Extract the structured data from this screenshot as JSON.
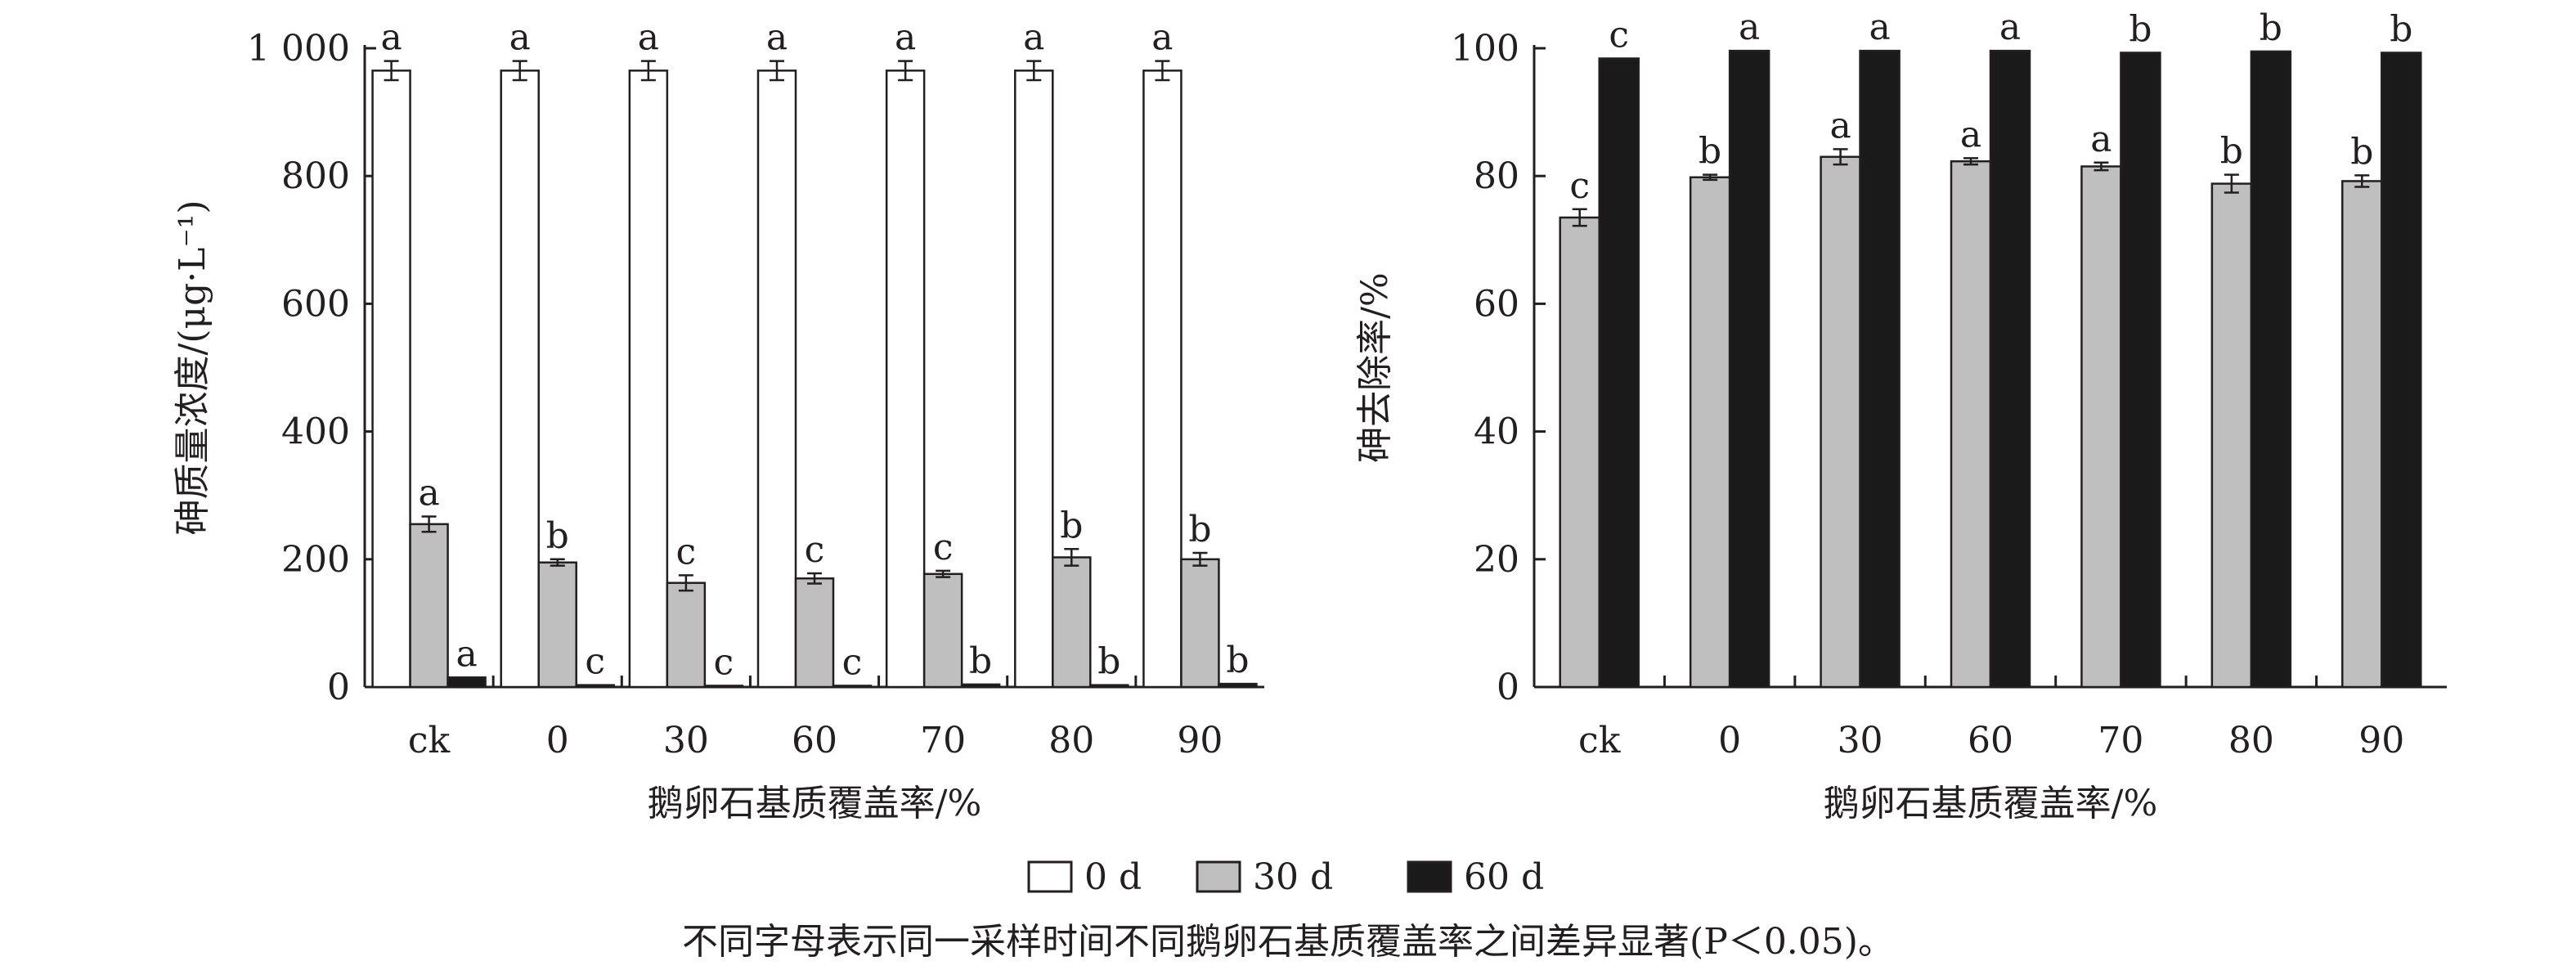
{
  "chart_data": [
    {
      "type": "bar",
      "categories": [
        "ck",
        "0",
        "30",
        "60",
        "70",
        "80",
        "90"
      ],
      "xlabel": "鹅卵石基质覆盖率/%",
      "ylabel": "砷质量浓度/(μg·L⁻¹)",
      "ylim": [
        0,
        1000
      ],
      "yticks": [
        "0",
        "200",
        "400",
        "600",
        "800",
        "1 000"
      ],
      "ytick_values": [
        0,
        200,
        400,
        600,
        800,
        1000
      ],
      "series": [
        {
          "name": "0 d",
          "color": "#ffffff",
          "values": [
            965,
            965,
            965,
            965,
            965,
            965,
            965
          ],
          "errors": [
            15,
            15,
            15,
            15,
            15,
            15,
            15
          ],
          "labels": [
            "a",
            "a",
            "a",
            "a",
            "a",
            "a",
            "a"
          ]
        },
        {
          "name": "30 d",
          "color": "#bfbfbf",
          "values": [
            255,
            195,
            163,
            170,
            177,
            203,
            200
          ],
          "errors": [
            12,
            5,
            12,
            8,
            5,
            13,
            10
          ],
          "labels": [
            "a",
            "b",
            "c",
            "c",
            "c",
            "b",
            "b"
          ]
        },
        {
          "name": "60 d",
          "color": "#1a1a1a",
          "values": [
            15,
            3,
            2,
            2,
            4,
            3,
            5
          ],
          "errors": [
            0,
            0,
            0,
            0,
            0,
            0,
            0
          ],
          "labels": [
            "a",
            "c",
            "c",
            "c",
            "b",
            "b",
            "b"
          ]
        }
      ]
    },
    {
      "type": "bar",
      "categories": [
        "ck",
        "0",
        "30",
        "60",
        "70",
        "80",
        "90"
      ],
      "xlabel": "鹅卵石基质覆盖率/%",
      "ylabel": "砷去除率/%",
      "ylim": [
        0,
        100
      ],
      "yticks": [
        "0",
        "20",
        "40",
        "60",
        "80",
        "100"
      ],
      "ytick_values": [
        0,
        20,
        40,
        60,
        80,
        100
      ],
      "series": [
        {
          "name": "30 d",
          "color": "#bfbfbf",
          "values": [
            73.5,
            79.8,
            83.0,
            82.3,
            81.5,
            78.8,
            79.2
          ],
          "errors": [
            1.3,
            0.4,
            1.2,
            0.5,
            0.6,
            1.4,
            0.9
          ],
          "labels": [
            "c",
            "b",
            "a",
            "a",
            "a",
            "b",
            "b"
          ]
        },
        {
          "name": "60 d",
          "color": "#1a1a1a",
          "values": [
            98.4,
            99.6,
            99.6,
            99.6,
            99.3,
            99.5,
            99.3
          ],
          "errors": [
            0,
            0,
            0,
            0,
            0,
            0,
            0
          ],
          "labels": [
            "c",
            "a",
            "a",
            "a",
            "b",
            "b",
            "b"
          ]
        }
      ]
    }
  ],
  "legend": [
    {
      "label": "0 d",
      "color": "#ffffff"
    },
    {
      "label": "30 d",
      "color": "#bfbfbf"
    },
    {
      "label": "60 d",
      "color": "#1a1a1a"
    }
  ],
  "caption": "不同字母表示同一采样时间不同鹅卵石基质覆盖率之间差异显著(P＜0.05)。"
}
